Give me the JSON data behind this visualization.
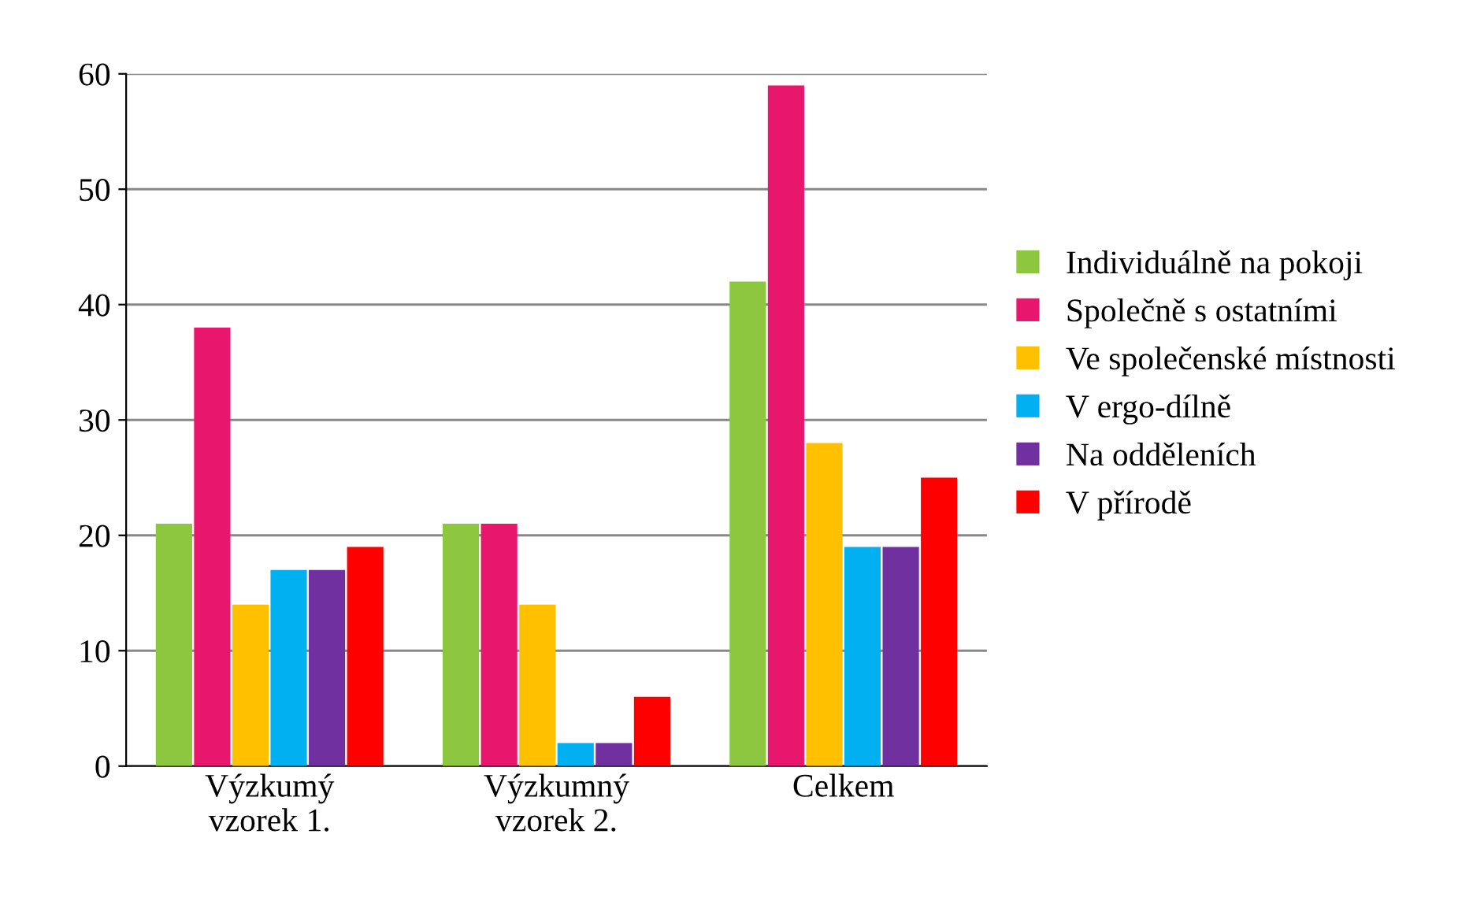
{
  "chart_data": {
    "type": "bar",
    "categories": [
      "Výzkumý\nvzorek 1.",
      "Výzkumný\nvzorek 2.",
      "Celkem"
    ],
    "series": [
      {
        "name": "Individuálně na pokoji",
        "color": "#8dc63f",
        "values": [
          21,
          21,
          42
        ]
      },
      {
        "name": "Společně s ostatními",
        "color": "#e8176d",
        "values": [
          38,
          21,
          59
        ]
      },
      {
        "name": "Ve společenské místnosti",
        "color": "#ffc000",
        "values": [
          14,
          14,
          28
        ]
      },
      {
        "name": "V ergo-dílně",
        "color": "#00b0f0",
        "values": [
          17,
          2,
          19
        ]
      },
      {
        "name": "Na odděleních",
        "color": "#7030a0",
        "values": [
          17,
          2,
          19
        ]
      },
      {
        "name": "V přírodě",
        "color": "#ff0000",
        "values": [
          19,
          6,
          25
        ]
      }
    ],
    "ylim": [
      0,
      60
    ],
    "yticks": [
      0,
      10,
      20,
      30,
      40,
      50,
      60
    ],
    "grid": "y",
    "legend": "right"
  }
}
